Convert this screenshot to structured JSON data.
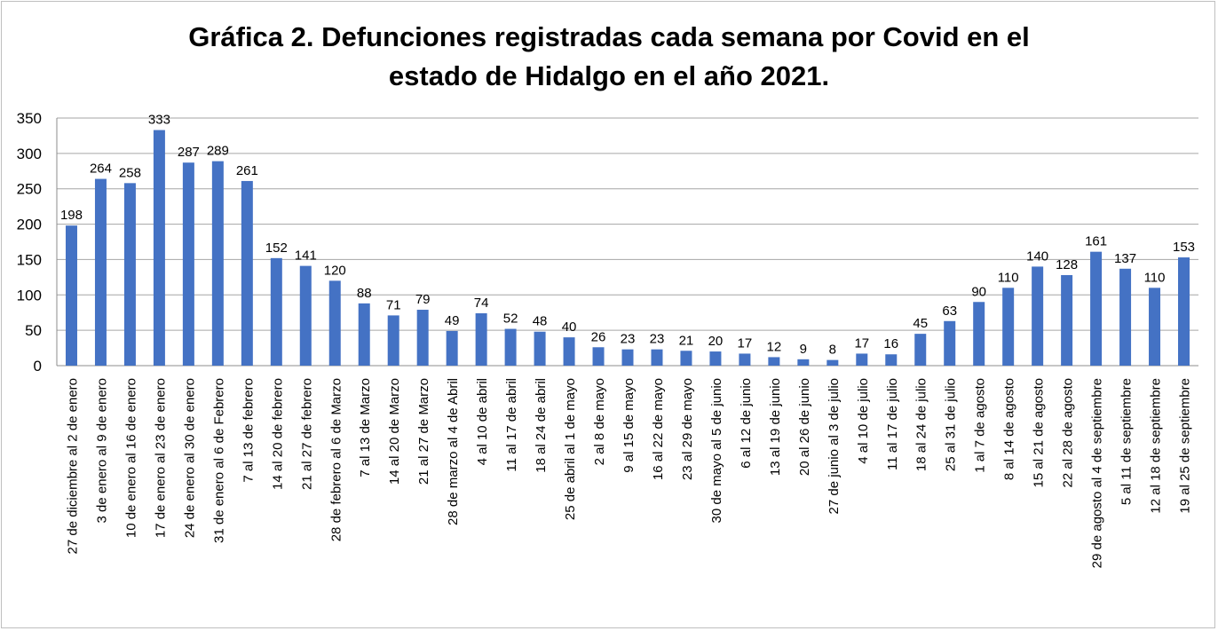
{
  "chart_data": {
    "type": "bar",
    "title_lines": [
      "Gráfica 2. Defunciones registradas cada semana por Covid en el",
      "estado de Hidalgo en el año 2021."
    ],
    "xlabel": "",
    "ylabel": "",
    "ylim": [
      0,
      350
    ],
    "yticks": [
      "0",
      "50",
      "100",
      "150",
      "200",
      "250",
      "300",
      "350"
    ],
    "grid": true,
    "legend": "none",
    "bar_color": "#4472c4",
    "grid_color": "#a6a6a6",
    "categories": [
      "27 de diciembre al 2 de enero",
      "3 de enero al 9 de enero",
      "10 de enero al 16 de enero",
      "17 de enero al 23 de enero",
      "24 de enero al 30 de enero",
      "31 de enero al 6 de Febrero",
      "7 al 13 de febrero",
      "14 al 20 de febrero",
      "21 al 27 de febrero",
      "28 de febrero al  6 de Marzo",
      "7 al 13 de Marzo",
      "14 al 20 de Marzo",
      "21 al 27 de Marzo",
      "28 de marzo al 4 de Abril",
      "4 al 10 de abril",
      "11 al 17 de abril",
      "18 al 24 de abril",
      "25 de abril al 1 de mayo",
      "2 al 8 de mayo",
      "9 al 15 de mayo",
      "16 al 22 de mayo",
      "23 al 29 de mayo",
      "30 de mayo al 5 de junio",
      "6 al 12 de junio",
      "13 al 19 de junio",
      "20 al 26 de junio",
      "27 de junio al 3 de julio",
      "4 al 10 de julio",
      "11 al 17 de julio",
      "18 al 24 de julio",
      "25 al 31 de julio",
      "1 al 7 de agosto",
      "8 al 14 de agosto",
      "15 al 21 de agosto",
      "22 al 28 de agosto",
      "29 de agosto al 4 de septiembre",
      "5 al 11 de septiembre",
      "12 al 18 de septiembre",
      "19 al 25 de septiembre"
    ],
    "values": [
      198,
      264,
      258,
      333,
      287,
      289,
      261,
      152,
      141,
      120,
      88,
      71,
      79,
      49,
      74,
      52,
      48,
      40,
      26,
      23,
      23,
      21,
      20,
      17,
      12,
      9,
      8,
      17,
      16,
      45,
      63,
      90,
      110,
      140,
      128,
      161,
      137,
      110,
      153
    ]
  }
}
